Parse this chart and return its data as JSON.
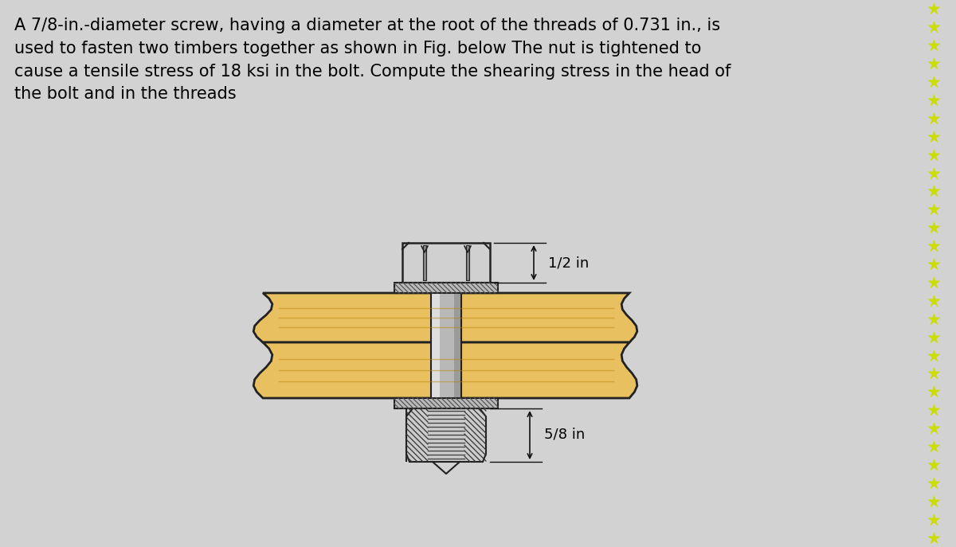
{
  "bg_color": "#d2d2d2",
  "text_main": "A 7/8-in.-diameter screw, having a diameter at the root of the threads of 0.731 in., is\nused to fasten two timbers together as shown in Fig. below The nut is tightened to\ncause a tensile stress of 18 ksi in the bolt. Compute the shearing stress in the head of\nthe bolt and in the threads",
  "text_fontsize": 15.0,
  "label_half": "1/2 in",
  "label_five_eighths": "5/8 in",
  "wood_color": "#dba830",
  "wood_fill": "#e8c060",
  "wood_outline": "#222222",
  "shank_color_left": "#d8d8d8",
  "shank_color_mid": "#b8b8b8",
  "shank_color_right": "#989898",
  "head_color": "#d0d0d0",
  "head_outline": "#222222",
  "washer_color": "#bbbbbb",
  "washer_hatch": "#555555",
  "nut_color": "#cccccc",
  "nut_hatch": "#333333",
  "thread_color": "#444444",
  "star_color": "#ccdd00",
  "dim_color": "#111111"
}
